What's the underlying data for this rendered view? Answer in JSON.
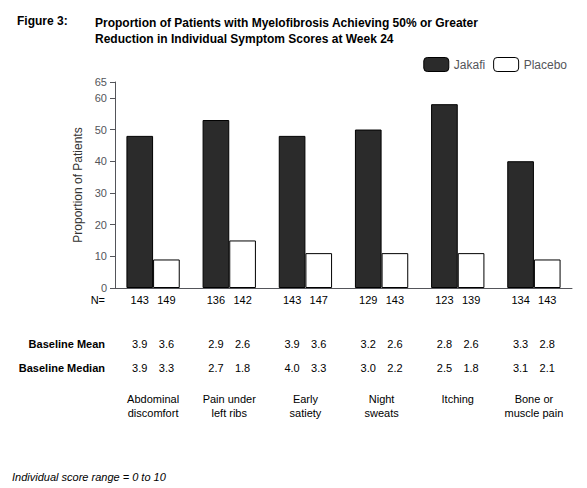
{
  "chart_data": {
    "type": "bar",
    "title": "Figure 3:",
    "subtitle": "Proportion of Patients with Myelofibrosis Achieving 50% or Greater\nReduction in Individual Symptom Scores at Week 24",
    "categories": [
      "Abdominal\ndiscomfort",
      "Pain under\nleft ribs",
      "Early\nsatiety",
      "Night\nsweats",
      "Itching",
      "Bone or\nmuscle pain"
    ],
    "series": [
      {
        "name": "Jakafi",
        "color": "#2b2b2b",
        "values": [
          48,
          53,
          48,
          50,
          58,
          40
        ]
      },
      {
        "name": "Placebo",
        "color": "#ffffff",
        "values": [
          9,
          15,
          11,
          11,
          11,
          9
        ]
      }
    ],
    "ylabel": "Proportion of Patients",
    "ylim": [
      0,
      65
    ],
    "yticks": [
      0,
      10,
      20,
      30,
      40,
      50,
      60
    ],
    "grid": false,
    "legend": "top",
    "table": [
      {
        "label": "N=",
        "values": [
          [
            143,
            136,
            143,
            129,
            123,
            134
          ],
          [
            149,
            142,
            147,
            143,
            139,
            143
          ]
        ]
      },
      {
        "label": "Baseline Mean",
        "values": [
          [
            "3.9",
            "2.9",
            "3.9",
            "3.2",
            "2.8",
            "3.3"
          ],
          [
            "3.6",
            "2.6",
            "3.6",
            "2.6",
            "2.6",
            "2.8"
          ]
        ]
      },
      {
        "label": "Baseline Median",
        "values": [
          [
            "3.9",
            "2.7",
            "4.0",
            "3.0",
            "2.5",
            "3.1"
          ],
          [
            "3.3",
            "1.8",
            "3.3",
            "2.2",
            "1.8",
            "2.1"
          ]
        ]
      }
    ],
    "annotations": [
      "Individual score range = 0 to 10"
    ]
  }
}
